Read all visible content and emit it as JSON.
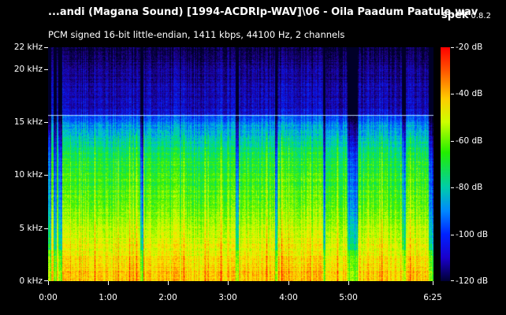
{
  "header": {
    "title": "...andi (Magana Sound) [1994-ACDRIp-WAV]\\06 - Oila Paadum Paatule.wav",
    "app_name": "spek",
    "app_version": "0.8.2",
    "description": "PCM signed 16-bit little-endian, 1411 kbps, 44100 Hz, 2 channels"
  },
  "colors": {
    "background": "#000000",
    "text": "#ffffff",
    "high_energy": "#ffff00",
    "mid_energy": "#00ee00",
    "low_energy": "#0000cc"
  },
  "chart_data": {
    "type": "heatmap",
    "title": "",
    "xlabel": "",
    "ylabel": "",
    "x_ticks": [
      "0:00",
      "1:00",
      "2:00",
      "3:00",
      "4:00",
      "5:00",
      "6:25"
    ],
    "y_ticks": [
      "0 kHz",
      "5 kHz",
      "10 kHz",
      "15 kHz",
      "20 kHz",
      "22 kHz"
    ],
    "colorbar_ticks": [
      "-20 dB",
      "-40 dB",
      "-60 dB",
      "-80 dB",
      "-100 dB",
      "-120 dB"
    ],
    "duration_seconds": 385,
    "max_frequency_khz": 22.05,
    "lowpass_cutoff_khz": 15.7,
    "db_range": [
      -120,
      -20
    ],
    "intensity_profile_by_frequency": [
      {
        "freq_khz": 0,
        "db": -35
      },
      {
        "freq_khz": 2,
        "db": -40
      },
      {
        "freq_khz": 5,
        "db": -50
      },
      {
        "freq_khz": 7.5,
        "db": -58
      },
      {
        "freq_khz": 10,
        "db": -62
      },
      {
        "freq_khz": 12,
        "db": -68
      },
      {
        "freq_khz": 14,
        "db": -80
      },
      {
        "freq_khz": 16,
        "db": -95
      },
      {
        "freq_khz": 20,
        "db": -102
      },
      {
        "freq_khz": 22,
        "db": -110
      }
    ],
    "quiet_regions_seconds": [
      [
        0,
        3
      ],
      [
        5,
        8
      ],
      [
        10,
        14
      ],
      [
        92,
        95
      ],
      [
        187,
        190
      ],
      [
        226,
        229
      ],
      [
        274,
        277
      ],
      [
        299,
        309
      ],
      [
        353,
        357
      ],
      [
        380,
        385
      ]
    ]
  }
}
